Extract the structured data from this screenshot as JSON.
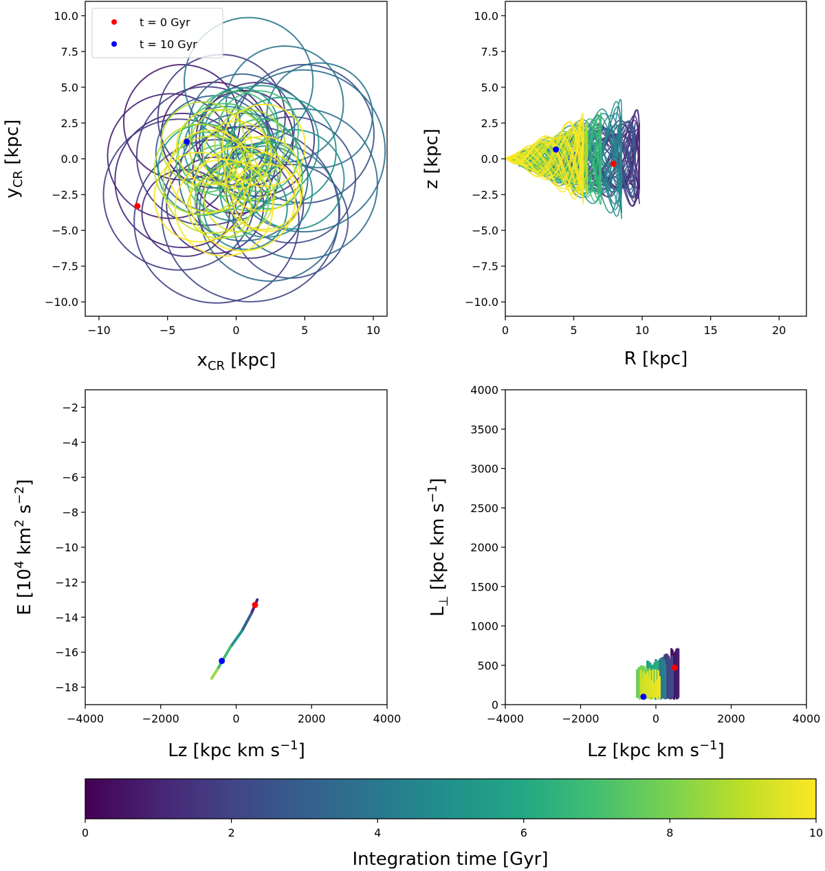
{
  "figure": {
    "colorbar": {
      "label": "Integration time [Gyr]",
      "cmap": "viridis",
      "range": [
        0,
        10
      ],
      "ticks": [
        "0",
        "2",
        "4",
        "6",
        "8",
        "10"
      ],
      "stops": [
        "#440154",
        "#482475",
        "#414487",
        "#355f8d",
        "#2a788e",
        "#21918c",
        "#22a884",
        "#44bf70",
        "#7ad151",
        "#bddf26",
        "#fde725"
      ]
    },
    "legend": {
      "items": [
        {
          "label": "t = 0 Gyr",
          "color": "#ff0000"
        },
        {
          "label": "t = 10 Gyr",
          "color": "#0000ff"
        }
      ]
    }
  },
  "chart_data": [
    {
      "type": "line",
      "name": "xy-orbit",
      "xlabel": "x",
      "xlabel_sub": "CR",
      "xlabel_unit": " [kpc]",
      "ylabel": "y",
      "ylabel_sub": "CR",
      "ylabel_unit": " [kpc]",
      "xlim": [
        -11,
        11
      ],
      "ylim": [
        -11,
        11
      ],
      "xticks": [
        -10,
        -5,
        0,
        5,
        10
      ],
      "xtick_labels": [
        "−10",
        "−5",
        "0",
        "5",
        "10"
      ],
      "yticks": [
        10,
        7.5,
        5,
        2.5,
        0,
        -2.5,
        -5,
        -7.5,
        -10
      ],
      "ytick_labels": [
        "10.0",
        "7.5",
        "5.0",
        "2.5",
        "0.0",
        "−2.5",
        "−5.0",
        "−7.5",
        "−10.0"
      ],
      "orbit_stages": [
        {
          "t": 0.5,
          "cx": -2.0,
          "cy": -0.8,
          "r": 5.8
        },
        {
          "t": 1.5,
          "cx": 0.8,
          "cy": -1.2,
          "r": 7.6
        },
        {
          "t": 3.0,
          "cx": 2.5,
          "cy": 1.0,
          "r": 7.0
        },
        {
          "t": 4.5,
          "cx": 1.0,
          "cy": -0.5,
          "r": 5.0
        },
        {
          "t": 6.5,
          "cx": 0.2,
          "cy": -0.3,
          "r": 4.0
        },
        {
          "t": 8.5,
          "cx": -0.5,
          "cy": -1.0,
          "r": 4.2
        },
        {
          "t": 9.6,
          "cx": 0.0,
          "cy": -1.3,
          "r": 4.5
        }
      ],
      "start_point": {
        "x": -7.2,
        "y": -3.3
      },
      "end_point": {
        "x": -3.6,
        "y": 1.2
      }
    },
    {
      "type": "line",
      "name": "Rz-orbit",
      "xlabel": "R [kpc]",
      "ylabel": "z [kpc]",
      "xlim": [
        0,
        22
      ],
      "ylim": [
        -11,
        11
      ],
      "xticks": [
        0,
        5,
        10,
        15,
        20
      ],
      "xtick_labels": [
        "0",
        "5",
        "10",
        "15",
        "20"
      ],
      "yticks": [
        10,
        7.5,
        5,
        2.5,
        0,
        -2.5,
        -5,
        -7.5,
        -10
      ],
      "ytick_labels": [
        "10.0",
        "7.5",
        "5.0",
        "2.5",
        "0.0",
        "−2.5",
        "−5.0",
        "−7.5",
        "−10.0"
      ],
      "orbit_stages": [
        {
          "t": 0.5,
          "rmin": 3.0,
          "rmax": 9.8,
          "zamp": 3.5
        },
        {
          "t": 2.0,
          "rmin": 2.0,
          "rmax": 9.5,
          "zamp": 2.8
        },
        {
          "t": 4.0,
          "rmin": 1.0,
          "rmax": 8.5,
          "zamp": 4.2
        },
        {
          "t": 6.0,
          "rmin": 0.5,
          "rmax": 7.0,
          "zamp": 3.2
        },
        {
          "t": 8.0,
          "rmin": 0.2,
          "rmax": 6.0,
          "zamp": 2.5
        },
        {
          "t": 9.5,
          "rmin": 0.0,
          "rmax": 5.7,
          "zamp": 3.2
        }
      ],
      "start_point": {
        "x": 7.9,
        "y": -0.35
      },
      "end_point": {
        "x": 3.7,
        "y": 0.65
      }
    },
    {
      "type": "line",
      "name": "E-Lz",
      "xlabel": "Lz [kpc km s",
      "xlabel_sup": "−1",
      "xlabel_close": "]",
      "ylabel": "E [10",
      "ylabel_sup": "4",
      "ylabel_mid": " km",
      "ylabel_sup2": "2",
      "ylabel_mid2": " s",
      "ylabel_sup3": "−2",
      "ylabel_close": "]",
      "xlim": [
        -4000,
        4000
      ],
      "ylim": [
        -19,
        -1
      ],
      "xticks": [
        -4000,
        -2000,
        0,
        2000,
        4000
      ],
      "xtick_labels": [
        "−4000",
        "−2000",
        "0",
        "2000",
        "4000"
      ],
      "yticks": [
        -2,
        -4,
        -6,
        -8,
        -10,
        -12,
        -14,
        -16,
        -18
      ],
      "ytick_labels": [
        "−2",
        "−4",
        "−6",
        "−8",
        "−10",
        "−12",
        "−14",
        "−16",
        "−18"
      ],
      "track": [
        {
          "t": 0.0,
          "lz": 560,
          "e": -13.0
        },
        {
          "t": 2.0,
          "lz": 400,
          "e": -13.8
        },
        {
          "t": 4.0,
          "lz": 150,
          "e": -14.8
        },
        {
          "t": 6.0,
          "lz": -150,
          "e": -15.7
        },
        {
          "t": 8.0,
          "lz": -500,
          "e": -17.0
        },
        {
          "t": 9.0,
          "lz": -650,
          "e": -17.5
        }
      ],
      "start_point": {
        "x": 500,
        "y": -13.3
      },
      "end_point": {
        "x": -380,
        "y": -16.5
      }
    },
    {
      "type": "area",
      "name": "Lperp-Lz",
      "xlabel": "Lz [kpc km s",
      "xlabel_sup": "−1",
      "xlabel_close": "]",
      "ylabel": "L",
      "ylabel_sub": "⊥",
      "ylabel_unit": " [kpc km s",
      "ylabel_sup": "−1",
      "ylabel_close": "]",
      "xlim": [
        -4000,
        4000
      ],
      "ylim": [
        0,
        4000
      ],
      "xticks": [
        -4000,
        -2000,
        0,
        2000,
        4000
      ],
      "xtick_labels": [
        "−4000",
        "−2000",
        "0",
        "2000",
        "4000"
      ],
      "yticks": [
        4000,
        3500,
        3000,
        2500,
        2000,
        1500,
        1000,
        500,
        0
      ],
      "ytick_labels": [
        "4000",
        "3500",
        "3000",
        "2500",
        "2000",
        "1500",
        "1000",
        "500",
        "0"
      ],
      "bands": [
        {
          "t": 0.5,
          "lz_min": 400,
          "lz_max": 600,
          "lp_max": 720
        },
        {
          "t": 2.0,
          "lz_min": 200,
          "lz_max": 450,
          "lp_max": 650
        },
        {
          "t": 4.0,
          "lz_min": 0,
          "lz_max": 250,
          "lp_max": 600
        },
        {
          "t": 6.0,
          "lz_min": -250,
          "lz_max": 50,
          "lp_max": 560
        },
        {
          "t": 8.0,
          "lz_min": -500,
          "lz_max": -150,
          "lp_max": 500
        },
        {
          "t": 9.5,
          "lz_min": -400,
          "lz_max": 100,
          "lp_max": 450
        }
      ],
      "start_point": {
        "x": 500,
        "y": 470
      },
      "end_point": {
        "x": -330,
        "y": 100
      }
    }
  ]
}
